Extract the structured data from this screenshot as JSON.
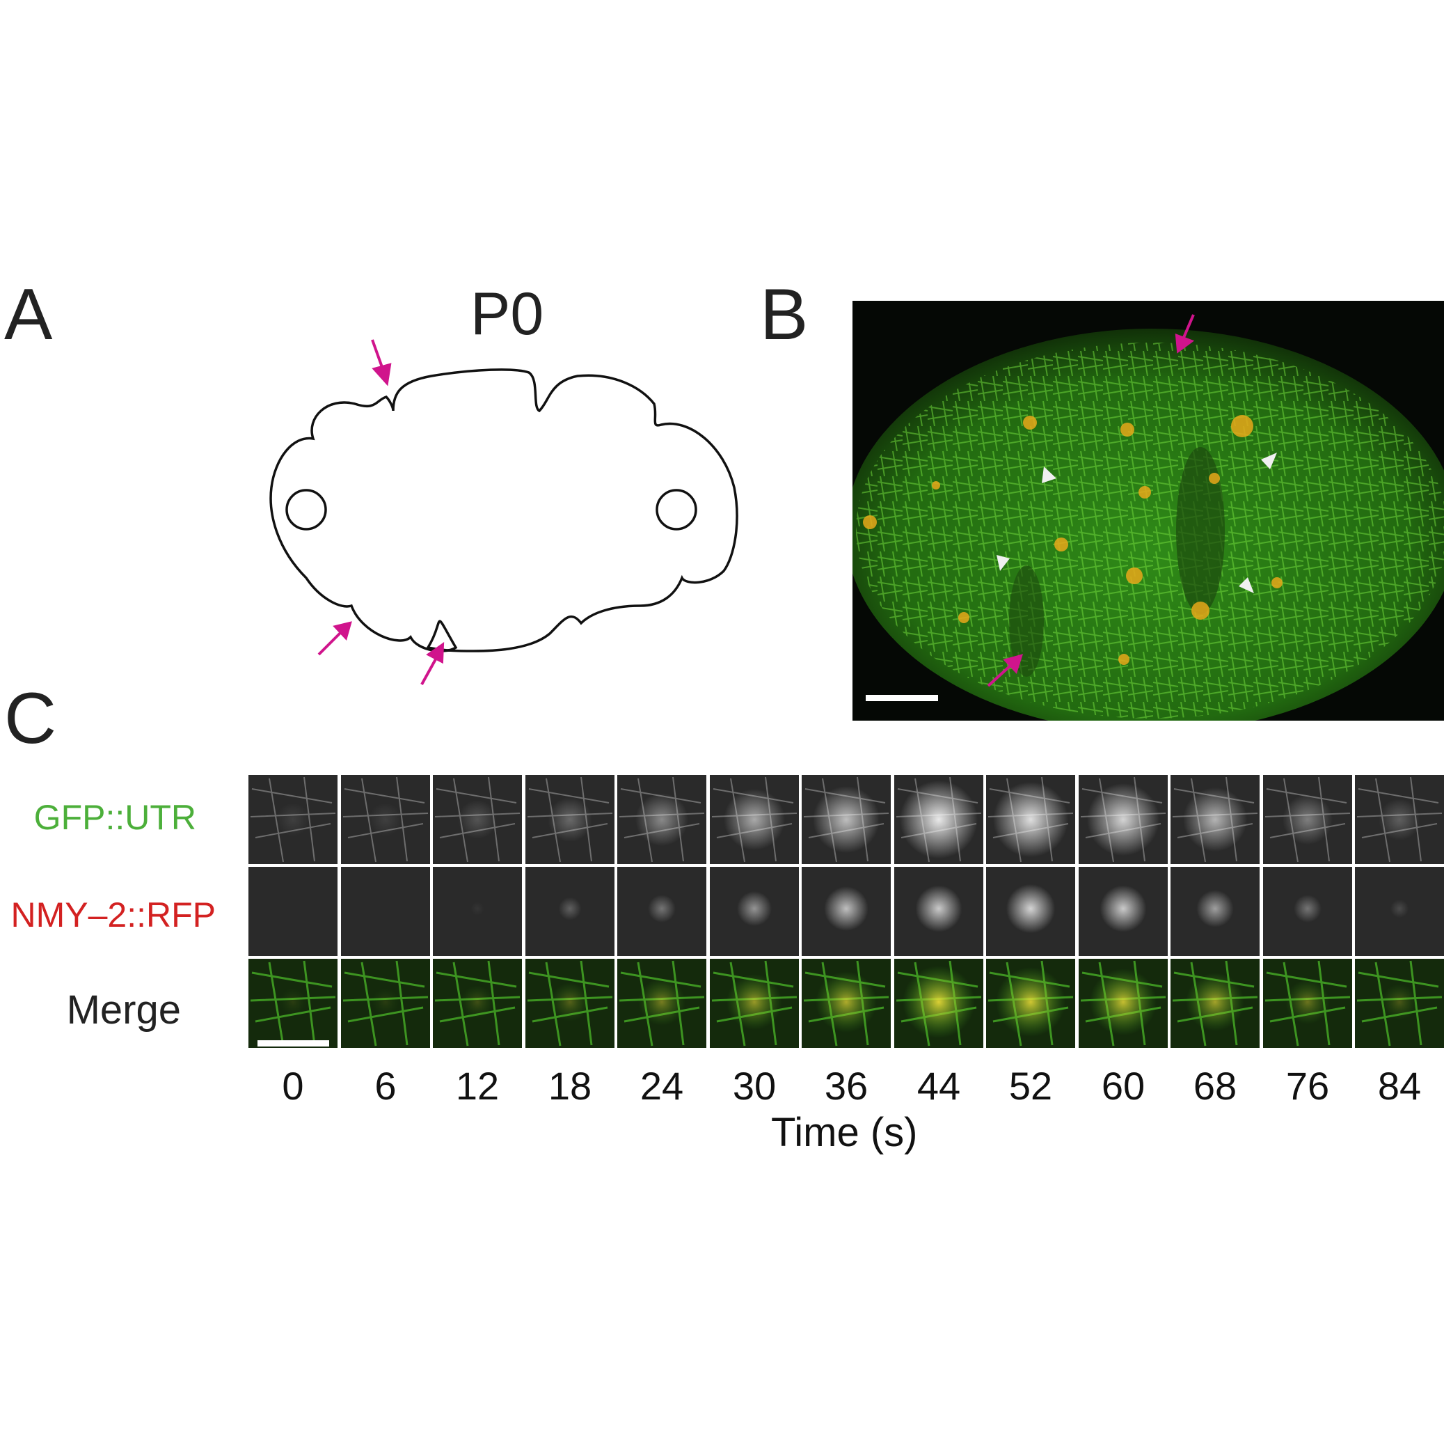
{
  "panels": {
    "a": {
      "letter": "A",
      "cell_label": "P0"
    },
    "b": {
      "letter": "B"
    },
    "c": {
      "letter": "C"
    }
  },
  "rows": [
    {
      "label": "GFP::UTR",
      "color": "#4caf3a",
      "kind": "gray"
    },
    {
      "label": "NMY–2::RFP",
      "color": "#d32121",
      "kind": "gray"
    },
    {
      "label": "Merge",
      "color": "#222222",
      "kind": "merge"
    }
  ],
  "time_points": [
    "0",
    "6",
    "12",
    "18",
    "24",
    "30",
    "36",
    "44",
    "52",
    "60",
    "68",
    "76",
    "84"
  ],
  "focus_intensity": {
    "utr": [
      0.1,
      0.1,
      0.2,
      0.3,
      0.45,
      0.6,
      0.7,
      0.9,
      0.85,
      0.8,
      0.65,
      0.4,
      0.25
    ],
    "nmy": [
      0.0,
      0.0,
      0.05,
      0.25,
      0.35,
      0.5,
      0.7,
      0.75,
      0.8,
      0.75,
      0.55,
      0.35,
      0.15
    ]
  },
  "axis": {
    "label": "Time (s)"
  },
  "colors": {
    "arrow": "#d0148c",
    "arrowhead": "#ffffff",
    "actin": "#3fb01f",
    "myosin": "#e8a81a"
  }
}
